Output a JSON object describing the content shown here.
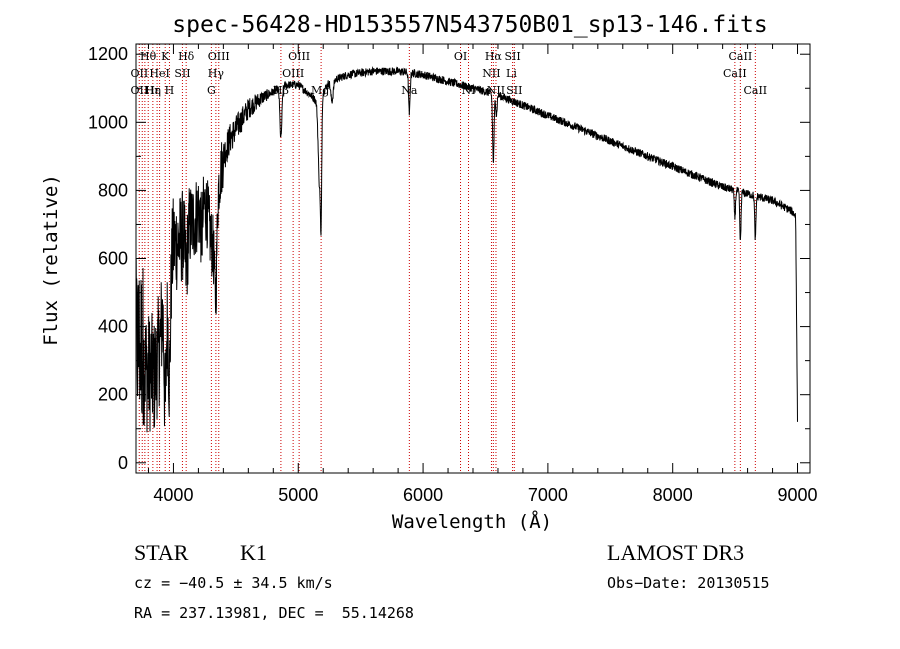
{
  "chart_data": {
    "type": "line",
    "title": "spec-56428-HD153557N543750B01_sp13-146.fits",
    "xlabel": "Wavelength (Å)",
    "ylabel": "Flux (relative)",
    "xlim": [
      3700,
      9100
    ],
    "ylim": [
      -30,
      1230
    ],
    "x_ticks": [
      4000,
      5000,
      6000,
      7000,
      8000,
      9000
    ],
    "y_ticks": [
      0,
      200,
      400,
      600,
      800,
      1000,
      1200
    ],
    "series": [
      {
        "name": "flux",
        "continuum": [
          [
            3700,
            280
          ],
          [
            3760,
            330
          ],
          [
            3800,
            370
          ],
          [
            3850,
            420
          ],
          [
            3900,
            450
          ],
          [
            3950,
            470
          ],
          [
            4000,
            640
          ],
          [
            4050,
            650
          ],
          [
            4100,
            690
          ],
          [
            4150,
            700
          ],
          [
            4200,
            740
          ],
          [
            4250,
            760
          ],
          [
            4300,
            720
          ],
          [
            4330,
            620
          ],
          [
            4360,
            810
          ],
          [
            4400,
            900
          ],
          [
            4450,
            950
          ],
          [
            4500,
            980
          ],
          [
            4550,
            1010
          ],
          [
            4600,
            1040
          ],
          [
            4700,
            1070
          ],
          [
            4800,
            1090
          ],
          [
            4900,
            1110
          ],
          [
            5000,
            1110
          ],
          [
            5100,
            1080
          ],
          [
            5150,
            1060
          ],
          [
            5250,
            1120
          ],
          [
            5400,
            1140
          ],
          [
            5600,
            1150
          ],
          [
            5800,
            1150
          ],
          [
            6000,
            1140
          ],
          [
            6200,
            1120
          ],
          [
            6400,
            1100
          ],
          [
            6600,
            1080
          ],
          [
            6800,
            1050
          ],
          [
            7000,
            1020
          ],
          [
            7200,
            990
          ],
          [
            7400,
            960
          ],
          [
            7600,
            930
          ],
          [
            7800,
            900
          ],
          [
            8000,
            870
          ],
          [
            8200,
            840
          ],
          [
            8400,
            810
          ],
          [
            8600,
            790
          ],
          [
            8800,
            770
          ],
          [
            8950,
            740
          ],
          [
            9000,
            720
          ]
        ],
        "absorption_features": [
          [
            3800,
            100,
            25
          ],
          [
            3850,
            150,
            20
          ],
          [
            3889,
            80,
            15
          ],
          [
            3934,
            300,
            8
          ],
          [
            3968,
            280,
            8
          ],
          [
            4102,
            120,
            10
          ],
          [
            4227,
            80,
            8
          ],
          [
            4300,
            60,
            15
          ],
          [
            4340,
            180,
            8
          ],
          [
            4861,
            150,
            8
          ],
          [
            5170,
            250,
            10
          ],
          [
            5183,
            300,
            5
          ],
          [
            5270,
            60,
            10
          ],
          [
            5890,
            120,
            6
          ],
          [
            6563,
            200,
            6
          ],
          [
            6588,
            60,
            5
          ],
          [
            8498,
            80,
            5
          ],
          [
            8542,
            150,
            5
          ],
          [
            8662,
            130,
            5
          ]
        ],
        "noise_amplitude_short_wavelength": 200,
        "noise_amplitude_long_wavelength": 20
      }
    ],
    "line_markers": {
      "wavelengths": [
        3726,
        3750,
        3771,
        3798,
        3835,
        3869,
        3889,
        3934,
        3968,
        4072,
        4102,
        4304,
        4340,
        4363,
        4861,
        4959,
        5007,
        5183,
        5890,
        6300,
        6364,
        6548,
        6563,
        6584,
        6717,
        6731,
        8498,
        8542,
        8662
      ],
      "labels": [
        {
          "text": "Hθ",
          "wavelength": 3797,
          "row": 1
        },
        {
          "text": "K",
          "wavelength": 3934,
          "row": 1
        },
        {
          "text": "Hδ",
          "wavelength": 4102,
          "row": 1
        },
        {
          "text": "OIII",
          "wavelength": 4363,
          "row": 1
        },
        {
          "text": "OIII",
          "wavelength": 5007,
          "row": 1
        },
        {
          "text": "OI",
          "wavelength": 6300,
          "row": 1
        },
        {
          "text": "Hα",
          "wavelength": 6563,
          "row": 1
        },
        {
          "text": "SII",
          "wavelength": 6717,
          "row": 1
        },
        {
          "text": "CaII",
          "wavelength": 8542,
          "row": 1
        },
        {
          "text": "OII",
          "wavelength": 3727,
          "row": 2
        },
        {
          "text": "HeI",
          "wavelength": 3889,
          "row": 2
        },
        {
          "text": "SII",
          "wavelength": 4072,
          "row": 2
        },
        {
          "text": "Hγ",
          "wavelength": 4340,
          "row": 2
        },
        {
          "text": "OIII",
          "wavelength": 4959,
          "row": 2
        },
        {
          "text": "NII",
          "wavelength": 6548,
          "row": 2
        },
        {
          "text": "Li",
          "wavelength": 6708,
          "row": 2
        },
        {
          "text": "CaII",
          "wavelength": 8498,
          "row": 2
        },
        {
          "text": "OII",
          "wavelength": 3727,
          "row": 3
        },
        {
          "text": "Hε",
          "wavelength": 3835,
          "row": 3
        },
        {
          "text": "Hη",
          "wavelength": 3835,
          "row": 3
        },
        {
          "text": "H",
          "wavelength": 3968,
          "row": 3
        },
        {
          "text": "G",
          "wavelength": 4304,
          "row": 3
        },
        {
          "text": "Hβ",
          "wavelength": 4861,
          "row": 3
        },
        {
          "text": "Mg",
          "wavelength": 5175,
          "row": 3
        },
        {
          "text": "Na",
          "wavelength": 5890,
          "row": 3
        },
        {
          "text": "NI",
          "wavelength": 6364,
          "row": 3
        },
        {
          "text": "NII",
          "wavelength": 6584,
          "row": 3
        },
        {
          "text": "SII",
          "wavelength": 6731,
          "row": 3
        },
        {
          "text": "CaII",
          "wavelength": 8662,
          "row": 3
        }
      ]
    },
    "marker_color": "#cc0000",
    "line_color": "#000000"
  },
  "info": {
    "object_class": "STAR",
    "subclass": "K1",
    "survey": "LAMOST DR3",
    "cz": "cz = −40.5 ± 34.5 km/s",
    "obs_date": "Obs−Date: 20130515",
    "coords": "RA = 237.13981, DEC =  55.14268"
  }
}
